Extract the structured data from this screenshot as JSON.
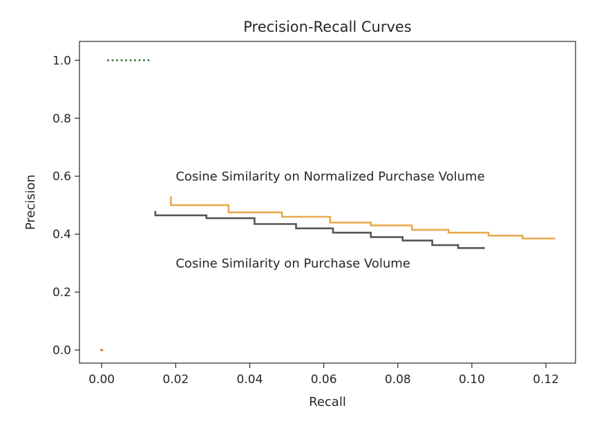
{
  "chart_data": {
    "type": "line",
    "title": "Precision-Recall Curves",
    "xlabel": "Recall",
    "ylabel": "Precision",
    "xlim": [
      -0.006,
      0.128
    ],
    "ylim": [
      -0.045,
      1.065
    ],
    "xticks": [
      0.0,
      0.02,
      0.04,
      0.06,
      0.08,
      0.1,
      0.12
    ],
    "xtick_labels": [
      "0.00",
      "0.02",
      "0.04",
      "0.06",
      "0.08",
      "0.10",
      "0.12"
    ],
    "yticks": [
      0.0,
      0.2,
      0.4,
      0.6,
      0.8,
      1.0
    ],
    "ytick_labels": [
      "0.0",
      "0.2",
      "0.4",
      "0.6",
      "0.8",
      "1.0"
    ],
    "grid": false,
    "legend": "none",
    "series": [
      {
        "color": "#e8a94e",
        "style": "step",
        "x": [
          0.0187,
          0.0187,
          0.0343,
          0.0343,
          0.0487,
          0.0487,
          0.0617,
          0.0617,
          0.0727,
          0.0727,
          0.0838,
          0.0838,
          0.0937,
          0.0937,
          0.1045,
          0.1045,
          0.1137,
          0.1137,
          0.1225
        ],
        "y": [
          0.53,
          0.5,
          0.5,
          0.475,
          0.475,
          0.46,
          0.46,
          0.44,
          0.44,
          0.43,
          0.43,
          0.415,
          0.415,
          0.405,
          0.405,
          0.395,
          0.395,
          0.385,
          0.385
        ]
      },
      {
        "color": "#555555",
        "style": "step",
        "x": [
          0.0145,
          0.0145,
          0.0283,
          0.0283,
          0.0413,
          0.0413,
          0.0525,
          0.0525,
          0.0625,
          0.0625,
          0.0727,
          0.0727,
          0.0813,
          0.0813,
          0.0893,
          0.0893,
          0.0963,
          0.0963,
          0.1035
        ],
        "y": [
          0.48,
          0.465,
          0.465,
          0.455,
          0.455,
          0.435,
          0.435,
          0.42,
          0.42,
          0.405,
          0.405,
          0.39,
          0.39,
          0.378,
          0.378,
          0.362,
          0.362,
          0.352,
          0.352
        ]
      },
      {
        "color": "#2d6a2d",
        "style": "dotted",
        "x": [
          0.0015,
          0.013
        ],
        "y": [
          1.0,
          1.0
        ]
      },
      {
        "color": "#e07a2e",
        "style": "dot",
        "x": [
          0.0
        ],
        "y": [
          0.0
        ]
      }
    ],
    "annotations": [
      {
        "text": "Cosine Similarity on Normalized Purchase Volume",
        "x": 0.02,
        "y": 0.585
      },
      {
        "text": "Cosine Similarity on Purchase Volume",
        "x": 0.02,
        "y": 0.285
      }
    ]
  }
}
